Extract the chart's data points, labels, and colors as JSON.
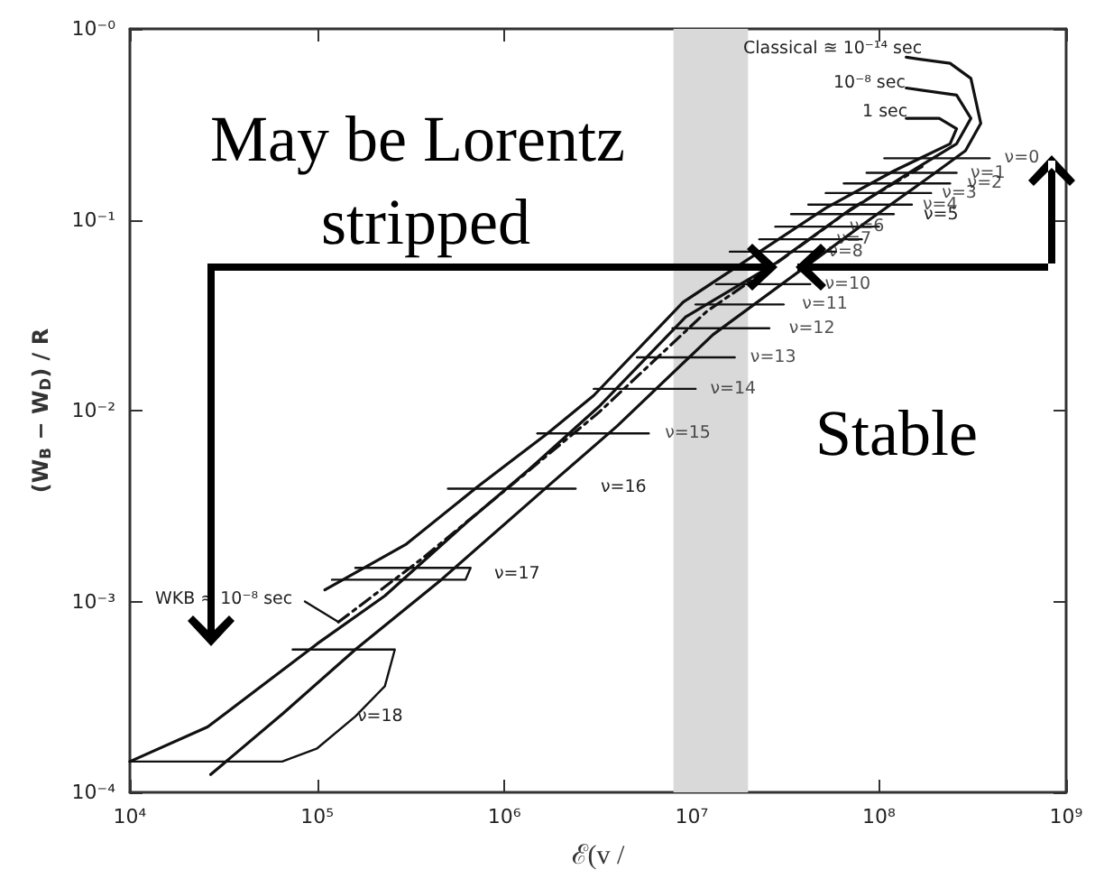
{
  "chart_data": {
    "type": "line",
    "xlabel": "ℰ(v /",
    "ylabel": "(W$_{B}$ − W$_{D}$) / R",
    "log": "xy",
    "grid": false,
    "marker": "none",
    "xlim": [
      10000,
      1000000000
    ],
    "ylim": [
      0.0001,
      1
    ],
    "xticks": [
      {
        "value": 10000,
        "label": "10⁴"
      },
      {
        "value": 100000,
        "label": "10⁵"
      },
      {
        "value": 1000000,
        "label": "10⁶"
      },
      {
        "value": 10000000,
        "label": "10⁷"
      },
      {
        "value": 100000000,
        "label": "10⁸"
      },
      {
        "value": 1000000000,
        "label": "10⁹"
      }
    ],
    "yticks": [
      {
        "value": 0.0001,
        "label": "10⁻⁴"
      },
      {
        "value": 0.001,
        "label": "10⁻³"
      },
      {
        "value": 0.01,
        "label": "10⁻²"
      },
      {
        "value": 0.1,
        "label": "10⁻¹"
      },
      {
        "value": 1,
        "label": "10⁻⁰"
      }
    ],
    "bands": [
      {
        "axis": "x",
        "from": 8000000,
        "to": 20000000,
        "color": "#d9d9d9"
      }
    ],
    "series": [
      {
        "color": "#111111",
        "x": [
          10000,
          26000,
          100000,
          230000,
          630000,
          1350000,
          3200000,
          9300000,
          28000000,
          65000000,
          150000000,
          260000000,
          310000000,
          260000000,
          140000000
        ],
        "values": [
          0.000145,
          0.00022,
          0.0006,
          0.00107,
          0.0026,
          0.0049,
          0.0105,
          0.031,
          0.059,
          0.107,
          0.18,
          0.25,
          0.34,
          0.45,
          0.49
        ]
      },
      {
        "color": "#111111",
        "x": [
          110000,
          300000,
          720000,
          1700000,
          3000000,
          9000000,
          52000000,
          120000000,
          240000000,
          260000000,
          210000000,
          140000000
        ],
        "values": [
          0.00115,
          0.002,
          0.004,
          0.0076,
          0.012,
          0.037,
          0.115,
          0.18,
          0.25,
          0.3,
          0.34,
          0.34
        ]
      },
      {
        "color": "#111111",
        "x": [
          27000,
          66000,
          160000,
          460000,
          1700000,
          4000000,
          13000000,
          89000000,
          190000000,
          290000000,
          350000000,
          310000000,
          240000000,
          140000000
        ],
        "values": [
          0.000124,
          0.00026,
          0.00056,
          0.0013,
          0.004,
          0.0083,
          0.025,
          0.1,
          0.17,
          0.23,
          0.32,
          0.55,
          0.66,
          0.71
        ]
      },
      {
        "color": "#111111",
        "line_style": "dashed",
        "x": [
          130000,
          370000,
          1200000,
          3200000,
          12000000,
          31000000,
          72000000,
          170000000
        ],
        "values": [
          0.00078,
          0.0017,
          0.0044,
          0.0098,
          0.033,
          0.063,
          0.115,
          0.19
        ]
      },
      {
        "color": "#111111",
        "x": [
          86000,
          130000
        ],
        "values": [
          0.001,
          0.00078
        ]
      },
      {
        "color": "#111111",
        "x": [
          107000000,
          390000000
        ],
        "values": [
          0.21,
          0.21
        ]
      },
      {
        "color": "#111111",
        "x": [
          86000000,
          260000000
        ],
        "values": [
          0.176,
          0.176
        ]
      },
      {
        "color": "#111111",
        "x": [
          65000000,
          240000000
        ],
        "values": [
          0.155,
          0.155
        ]
      },
      {
        "color": "#111111",
        "x": [
          52000000,
          190000000
        ],
        "values": [
          0.138,
          0.138
        ]
      },
      {
        "color": "#111111",
        "x": [
          42000000,
          150000000
        ],
        "values": [
          0.12,
          0.12
        ]
      },
      {
        "color": "#111111",
        "x": [
          34000000,
          120000000
        ],
        "values": [
          0.107,
          0.107
        ]
      },
      {
        "color": "#111111",
        "x": [
          28000000,
          100000000
        ],
        "values": [
          0.092,
          0.092
        ]
      },
      {
        "color": "#111111",
        "x": [
          23000000,
          81000000
        ],
        "values": [
          0.079,
          0.079
        ]
      },
      {
        "color": "#111111",
        "x": [
          16000000,
          59000000
        ],
        "values": [
          0.068,
          0.068
        ]
      },
      {
        "color": "#111111",
        "x": [
          13500000,
          43000000
        ],
        "values": [
          0.046,
          0.046
        ]
      },
      {
        "color": "#111111",
        "x": [
          10500000,
          31000000
        ],
        "values": [
          0.036,
          0.036
        ]
      },
      {
        "color": "#111111",
        "x": [
          7900000,
          26000000
        ],
        "values": [
          0.027,
          0.027
        ]
      },
      {
        "color": "#111111",
        "x": [
          5100000,
          17000000
        ],
        "values": [
          0.019,
          0.019
        ]
      },
      {
        "color": "#111111",
        "x": [
          3000000,
          10500000
        ],
        "values": [
          0.013,
          0.013
        ]
      },
      {
        "color": "#111111",
        "x": [
          1500000,
          5900000
        ],
        "values": [
          0.0076,
          0.0076
        ]
      },
      {
        "color": "#111111",
        "x": [
          500000,
          2400000
        ],
        "values": [
          0.0039,
          0.0039
        ]
      },
      {
        "color": "#111111",
        "x": [
          160000,
          660000,
          620000,
          120000
        ],
        "values": [
          0.0015,
          0.0015,
          0.0013,
          0.0013
        ]
      },
      {
        "color": "#111111",
        "x": [
          74000,
          260000,
          230000,
          160000,
          100000,
          65000,
          10000
        ],
        "values": [
          0.00056,
          0.00056,
          0.00036,
          0.00025,
          0.00017,
          0.000145,
          0.000145
        ]
      }
    ],
    "annotations": [
      "May be Lorentz stripped",
      "Stable",
      "Classical ≊ 10⁻¹⁴ sec",
      "10⁻⁸ sec",
      "1 sec",
      "WKB ≈ 10⁻⁸ sec",
      {
        "text": "ν=0",
        "x": 410000000,
        "y": 0.21
      },
      {
        "text": "ν=1",
        "x": 270000000,
        "y": 0.176
      },
      {
        "text": "ν=2",
        "x": 260000000,
        "y": 0.155
      },
      {
        "text": "ν=3",
        "x": 190000000,
        "y": 0.138
      },
      {
        "text": "ν=4",
        "x": 150000000,
        "y": 0.12
      },
      "ν=5",
      {
        "text": "ν=6",
        "x": 61000000,
        "y": 0.092
      },
      {
        "text": "ν=7",
        "x": 52000000,
        "y": 0.079
      },
      {
        "text": "ν=8",
        "x": 47000000,
        "y": 0.068
      },
      {
        "text": "ν=10",
        "x": 45000000,
        "y": 0.046
      },
      {
        "text": "ν=11",
        "x": 34000000,
        "y": 0.036
      },
      {
        "text": "ν=12",
        "x": 29000000,
        "y": 0.027
      },
      {
        "text": "ν=13",
        "x": 18000000,
        "y": 0.019
      },
      {
        "text": "ν=14",
        "x": 11000000,
        "y": 0.013
      },
      {
        "text": "ν=15",
        "x": 6300000,
        "y": 0.0076
      },
      "ν=16",
      "ν=17",
      "ν=18"
    ]
  }
}
